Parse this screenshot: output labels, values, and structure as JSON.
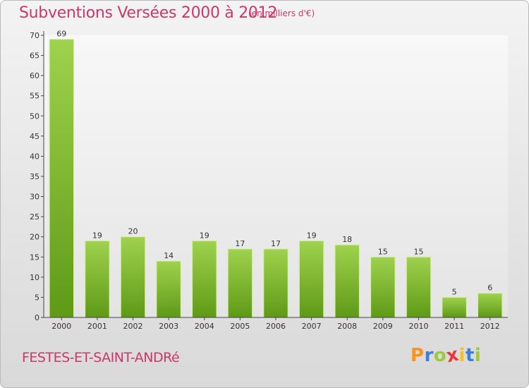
{
  "header": {
    "title": "Subventions Versées 2000 à 2012",
    "unit_note": "(en milliers d'€)"
  },
  "footer": {
    "commune": "FESTES-ET-SAINT-ANDRé",
    "logo_letters": [
      "P",
      "r",
      "o",
      "x",
      "i",
      "t",
      "i"
    ],
    "logo_colors": [
      "#f7931e",
      "#3d7fd6",
      "#9ac93c",
      "#e8343b",
      "#f7c21e",
      "#3d7fd6",
      "#9ac93c"
    ]
  },
  "chart_data": {
    "type": "bar",
    "title": "Subventions Versées 2000 à 2012",
    "subtitle": "(en milliers d'€)",
    "categories": [
      "2000",
      "2001",
      "2002",
      "2003",
      "2004",
      "2005",
      "2006",
      "2007",
      "2008",
      "2009",
      "2010",
      "2011",
      "2012"
    ],
    "values": [
      69,
      19,
      20,
      14,
      19,
      17,
      17,
      19,
      18,
      15,
      15,
      5,
      6
    ],
    "ylim": [
      0,
      70
    ],
    "yticks": [
      0,
      5,
      10,
      15,
      20,
      25,
      30,
      35,
      40,
      45,
      50,
      55,
      60,
      65,
      70
    ],
    "grid": false,
    "bar_color_top": "#9fd24e",
    "bar_color_bottom": "#5e9a16"
  }
}
